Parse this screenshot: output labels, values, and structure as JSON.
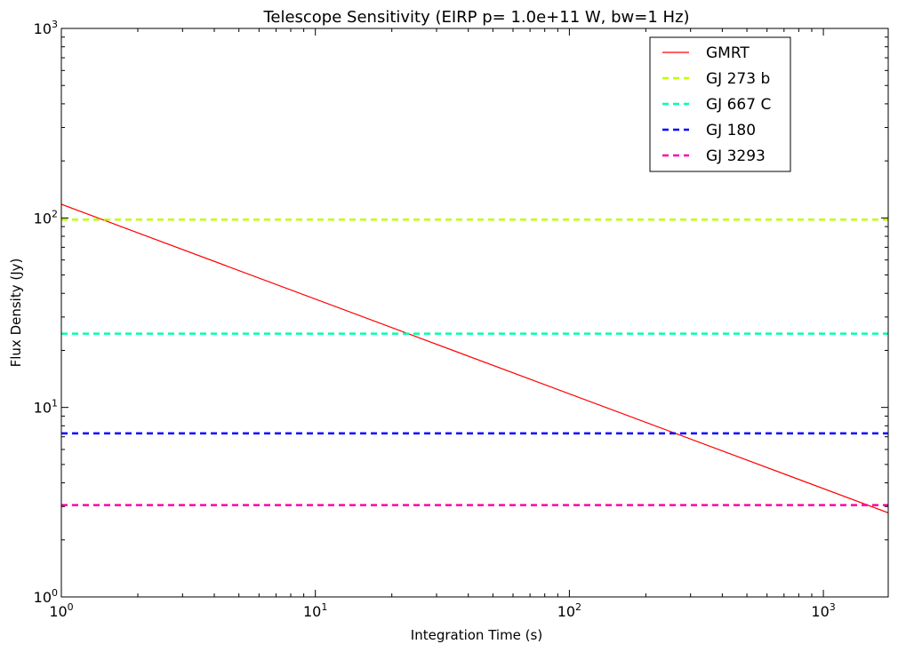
{
  "chart_data": {
    "type": "line",
    "title": "Telescope Sensitivity (EIRP p= 1.0e+11 W, bw=1 Hz)",
    "xlabel": "Integration Time (s)",
    "ylabel": "Flux Density (Jy)",
    "xscale": "log",
    "yscale": "log",
    "xlim": [
      1,
      1800
    ],
    "ylim": [
      1,
      1000
    ],
    "xticks": [
      {
        "value": 1,
        "label": "10",
        "exp": "0"
      },
      {
        "value": 10,
        "label": "10",
        "exp": "1"
      },
      {
        "value": 100,
        "label": "10",
        "exp": "2"
      },
      {
        "value": 1000,
        "label": "10",
        "exp": "3"
      }
    ],
    "yticks": [
      {
        "value": 1,
        "label": "10",
        "exp": "0"
      },
      {
        "value": 10,
        "label": "10",
        "exp": "1"
      },
      {
        "value": 100,
        "label": "10",
        "exp": "2"
      },
      {
        "value": 1000,
        "label": "10",
        "exp": "3"
      }
    ],
    "grid": false,
    "legend_position": "top-right",
    "series": [
      {
        "name": "GMRT",
        "kind": "line",
        "color": "#ff0000",
        "style": "solid",
        "x": [
          1,
          1800
        ],
        "y": [
          118,
          2.78
        ]
      },
      {
        "name": "GJ 273 b",
        "kind": "hline",
        "color": "#bfff00",
        "style": "dashed",
        "y": 98
      },
      {
        "name": "GJ 667 C",
        "kind": "hline",
        "color": "#00ffaa",
        "style": "dashed",
        "y": 24.5
      },
      {
        "name": "GJ 180",
        "kind": "hline",
        "color": "#0000ff",
        "style": "dashed",
        "y": 7.3
      },
      {
        "name": "GJ 3293",
        "kind": "hline",
        "color": "#ff00aa",
        "style": "dashed",
        "y": 3.05
      }
    ]
  }
}
